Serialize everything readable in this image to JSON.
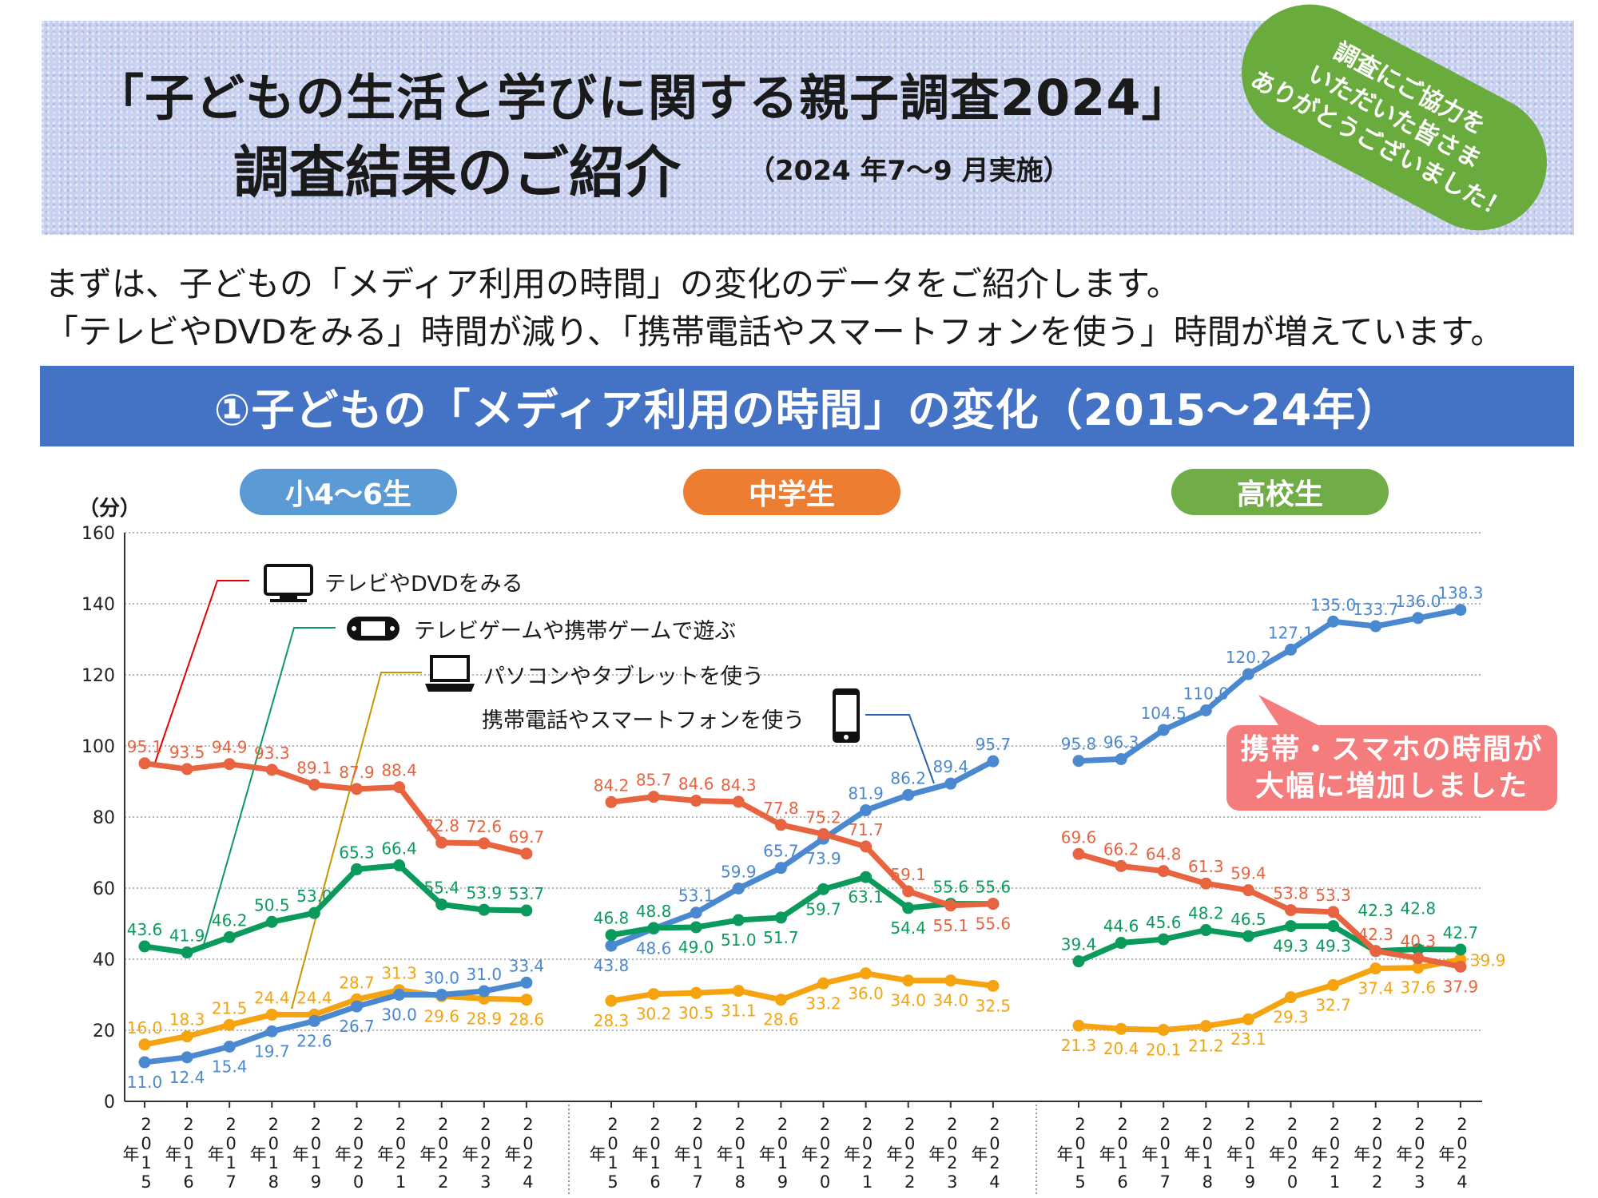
{
  "header": {
    "title_line1": "「子どもの生活と学びに関する親子調査2024」",
    "title_line2": "調査結果のご紹介",
    "survey_period": "（2024 年7〜9 月実施）",
    "badge_lines": [
      "調査にご協力を",
      "いただいた皆さま",
      "ありがとうございました！"
    ],
    "badge_color": "#6aab3d"
  },
  "intro": {
    "line1": "まずは、子どもの「メディア利用の時間」の変化のデータをご紹介します。",
    "line2": "「テレビやDVDをみる」時間が減り、「携帯電話やスマートフォンを使う」時間が増えています。"
  },
  "banner": {
    "title": "①子どもの「メディア利用の時間」の変化（2015〜24年）",
    "color": "#4472c4"
  },
  "callout": {
    "line1": "携帯・スマホの時間が",
    "line2": "大幅に増加しました",
    "color": "#f47c7c"
  },
  "chart_data": {
    "type": "line",
    "ylabel": "（分）",
    "ylim": [
      0,
      160
    ],
    "yticks": [
      "0",
      "20",
      "40",
      "60",
      "80",
      "100",
      "120",
      "140",
      "160"
    ],
    "grid": true,
    "categories": [
      "2015年",
      "2016年",
      "2017年",
      "2018年",
      "2019年",
      "2020年",
      "2021年",
      "2022年",
      "2023年",
      "2024年"
    ],
    "series": [
      {
        "key": "tv",
        "name": "テレビやDVDをみる",
        "color": "#e8633f",
        "icon": "tv-icon"
      },
      {
        "key": "game",
        "name": "テレビゲームや携帯ゲームで遊ぶ",
        "color": "#0a9a5c",
        "icon": "game-console-icon"
      },
      {
        "key": "pc",
        "name": "パソコンやタブレットを使う",
        "color": "#f5a30f",
        "icon": "laptop-icon"
      },
      {
        "key": "phone",
        "name": "携帯電話やスマートフォンを使う",
        "color": "#4a88d0",
        "icon": "smartphone-icon"
      }
    ],
    "panels": [
      {
        "title": "小4〜6生",
        "color": "#5b9bd5",
        "values": {
          "tv": [
            95.1,
            93.5,
            94.9,
            93.3,
            89.1,
            87.9,
            88.4,
            72.8,
            72.6,
            69.7
          ],
          "game": [
            43.6,
            41.9,
            46.2,
            50.5,
            53.0,
            65.3,
            66.4,
            55.4,
            53.9,
            53.7
          ],
          "pc": [
            16.0,
            18.3,
            21.5,
            24.4,
            24.4,
            28.7,
            31.3,
            29.6,
            28.9,
            28.6
          ],
          "phone": [
            11.0,
            12.4,
            15.4,
            19.7,
            22.6,
            26.7,
            30.0,
            30.0,
            31.0,
            33.4
          ]
        }
      },
      {
        "title": "中学生",
        "color": "#ed7d31",
        "values": {
          "tv": [
            84.2,
            85.7,
            84.6,
            84.3,
            77.8,
            75.2,
            71.7,
            59.1,
            55.1,
            55.6
          ],
          "game": [
            46.8,
            48.8,
            49.0,
            51.0,
            51.7,
            59.7,
            63.1,
            54.4,
            55.6,
            55.6
          ],
          "pc": [
            28.3,
            30.2,
            30.5,
            31.1,
            28.6,
            33.2,
            36.0,
            34.0,
            34.0,
            32.5
          ],
          "phone": [
            43.8,
            48.6,
            53.1,
            59.9,
            65.7,
            73.9,
            81.9,
            86.2,
            89.4,
            95.7
          ]
        }
      },
      {
        "title": "高校生",
        "color": "#70ad47",
        "values": {
          "tv": [
            69.6,
            66.2,
            64.8,
            61.3,
            59.4,
            53.8,
            53.3,
            42.3,
            40.3,
            37.9
          ],
          "game": [
            39.4,
            44.6,
            45.6,
            48.2,
            46.5,
            49.3,
            49.3,
            42.3,
            42.8,
            42.7
          ],
          "pc": [
            21.3,
            20.4,
            20.1,
            21.2,
            23.1,
            29.3,
            32.7,
            37.4,
            37.6,
            39.9
          ],
          "phone": [
            95.8,
            96.3,
            104.5,
            110.0,
            120.2,
            127.1,
            135.0,
            133.7,
            136.0,
            138.3
          ]
        }
      }
    ]
  }
}
